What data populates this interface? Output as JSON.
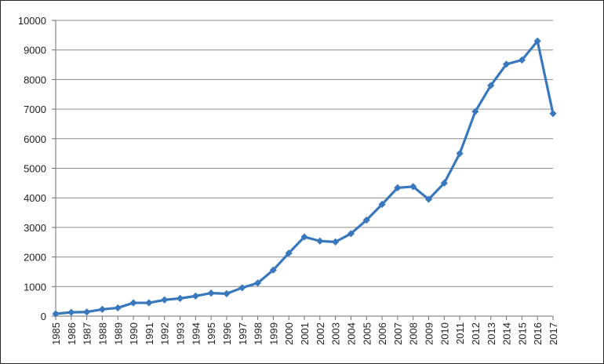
{
  "chart_data": {
    "type": "line",
    "title": "",
    "xlabel": "",
    "ylabel": "",
    "ylim": [
      0,
      10000
    ],
    "yticks": [
      0,
      1000,
      2000,
      3000,
      4000,
      5000,
      6000,
      7000,
      8000,
      9000,
      10000
    ],
    "grid": "horizontal",
    "legend": "none",
    "line_color": "#3A78BE",
    "categories": [
      "1985",
      "1986",
      "1987",
      "1988",
      "1989",
      "1990",
      "1991",
      "1992",
      "1993",
      "1994",
      "1995",
      "1996",
      "1997",
      "1998",
      "1999",
      "2000",
      "2001",
      "2002",
      "2003",
      "2004",
      "2005",
      "2006",
      "2007",
      "2008",
      "2009",
      "2010",
      "2011",
      "2012",
      "2013",
      "2014",
      "2015",
      "2016",
      "2017"
    ],
    "series": [
      {
        "values": [
          80,
          130,
          140,
          230,
          280,
          450,
          450,
          550,
          600,
          680,
          780,
          760,
          960,
          1120,
          1560,
          2130,
          2680,
          2540,
          2510,
          2790,
          3250,
          3780,
          4340,
          4380,
          3950,
          4500,
          5500,
          6920,
          7800,
          8520,
          8660,
          9300,
          6850
        ]
      }
    ]
  }
}
